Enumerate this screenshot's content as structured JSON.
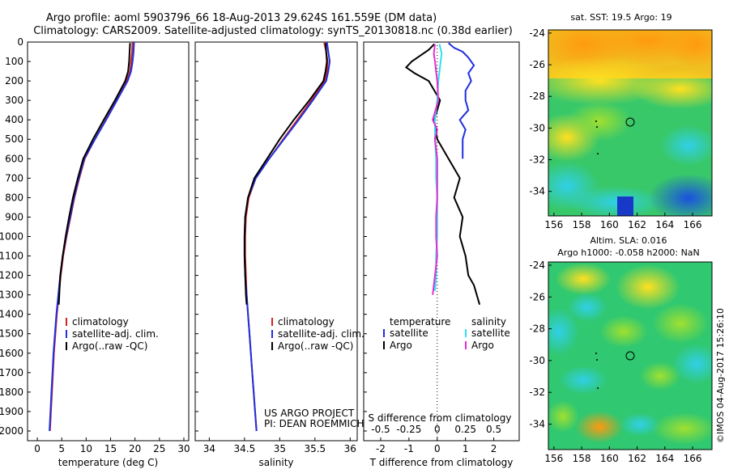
{
  "header": {
    "title_line1": "Argo profile: aoml 5903796_66 18-Aug-2013 29.624S 161.559E (DM data)",
    "title_line2": "Climatology: CARS2009. Satellite-adjusted climatology: synTS_20130818.nc (0.38d earlier)"
  },
  "colors": {
    "climatology": "#d62020",
    "satellite": "#2030e0",
    "argo": "#000000",
    "sal_sat": "#30e0f0",
    "sal_argo": "#e030d0"
  },
  "chart_data": [
    {
      "type": "line",
      "id": "temperature",
      "xlabel": "temperature (deg C)",
      "xlim": [
        -2,
        31
      ],
      "xticks": [
        "0",
        "5",
        "10",
        "15",
        "20",
        "25",
        "30"
      ],
      "ylim": [
        0,
        2050
      ],
      "yticks": [
        "0",
        "100",
        "200",
        "300",
        "400",
        "500",
        "600",
        "700",
        "800",
        "900",
        "1000",
        "1100",
        "1200",
        "1300",
        "1400",
        "1500",
        "1600",
        "1700",
        "1800",
        "1900",
        "2000"
      ],
      "legend": [
        "climatology",
        "satellite-adj. clim.",
        "Argo(..raw -QC)"
      ],
      "series": [
        {
          "name": "climatology",
          "depth": [
            0,
            50,
            100,
            150,
            200,
            300,
            400,
            500,
            600,
            700,
            800,
            900,
            1000,
            1100,
            1200,
            1300,
            1400,
            1500,
            1600,
            1700,
            1800,
            1900,
            2000
          ],
          "values": [
            19.5,
            19.4,
            19.2,
            19.0,
            18.3,
            16.2,
            14.0,
            11.8,
            9.7,
            8.6,
            7.6,
            6.8,
            6.0,
            5.3,
            4.8,
            4.4,
            4.0,
            3.7,
            3.4,
            3.2,
            3.0,
            2.8,
            2.6
          ]
        },
        {
          "name": "satellite-adj. clim.",
          "depth": [
            0,
            50,
            100,
            150,
            200,
            300,
            400,
            500,
            600,
            700,
            800,
            900,
            1000,
            1100,
            1200,
            1300,
            1400,
            1500,
            1600,
            1700,
            1800,
            1900,
            2000
          ],
          "values": [
            19.8,
            19.7,
            19.5,
            19.2,
            18.5,
            16.3,
            14.1,
            11.8,
            9.6,
            8.5,
            7.5,
            6.7,
            5.9,
            5.2,
            4.7,
            4.3,
            3.9,
            3.6,
            3.3,
            3.1,
            2.9,
            2.7,
            2.5
          ]
        },
        {
          "name": "Argo(..raw -QC)",
          "depth": [
            5,
            50,
            100,
            150,
            200,
            300,
            400,
            500,
            600,
            700,
            800,
            900,
            1000,
            1100,
            1200,
            1250,
            1300,
            1350
          ],
          "values": [
            19.0,
            18.9,
            18.8,
            18.6,
            18.0,
            15.9,
            13.6,
            11.4,
            9.4,
            8.3,
            7.3,
            6.5,
            5.8,
            5.2,
            4.7,
            4.6,
            4.5,
            4.4
          ]
        }
      ]
    },
    {
      "type": "line",
      "id": "salinity",
      "xlabel": "salinity",
      "xlim": [
        33.8,
        36.1
      ],
      "xticks": [
        "34",
        "34.5",
        "35",
        "35.5",
        "36"
      ],
      "ylim": [
        0,
        2050
      ],
      "legend": [
        "climatology",
        "satellite-adj. clim.",
        "Argo(..raw -QC)"
      ],
      "series": [
        {
          "name": "climatology",
          "depth": [
            0,
            50,
            100,
            150,
            200,
            300,
            400,
            500,
            600,
            700,
            800,
            900,
            1000,
            1100,
            1200,
            1300,
            1400,
            1500,
            1600,
            1700,
            1800,
            1900,
            2000
          ],
          "values": [
            35.63,
            35.66,
            35.68,
            35.67,
            35.64,
            35.45,
            35.25,
            35.05,
            34.85,
            34.66,
            34.56,
            34.52,
            34.51,
            34.51,
            34.52,
            34.53,
            34.55,
            34.57,
            34.59,
            34.61,
            34.63,
            34.65,
            34.67
          ]
        },
        {
          "name": "satellite-adj. clim.",
          "depth": [
            0,
            50,
            100,
            150,
            200,
            300,
            400,
            500,
            600,
            700,
            800,
            900,
            1000,
            1100,
            1200,
            1300,
            1400,
            1500,
            1600,
            1700,
            1800,
            1900,
            2000
          ],
          "values": [
            35.67,
            35.69,
            35.71,
            35.69,
            35.66,
            35.47,
            35.27,
            35.06,
            34.85,
            34.66,
            34.55,
            34.51,
            34.5,
            34.5,
            34.51,
            34.53,
            34.55,
            34.57,
            34.59,
            34.61,
            34.63,
            34.65,
            34.67
          ]
        },
        {
          "name": "Argo(..raw -QC)",
          "depth": [
            5,
            50,
            100,
            150,
            200,
            300,
            400,
            500,
            600,
            700,
            800,
            900,
            1000,
            1100,
            1200,
            1300,
            1350
          ],
          "values": [
            35.65,
            35.66,
            35.67,
            35.65,
            35.62,
            35.42,
            35.2,
            35.0,
            34.82,
            34.64,
            34.55,
            34.51,
            34.5,
            34.5,
            34.51,
            34.52,
            34.53
          ]
        }
      ],
      "annotations": [
        "US ARGO PROJECT",
        "PI: DEAN ROEMMICH"
      ]
    },
    {
      "type": "line",
      "id": "difference",
      "xlabel": "T difference from climatology",
      "xlabel_top": "S difference from climatology",
      "xlim": [
        -2.6,
        2.9
      ],
      "xticks": [
        "-2",
        "-1",
        "0",
        "1",
        "2"
      ],
      "xticks_top": [
        "-0.5",
        "-0.25",
        "0",
        "0.25",
        "0.5"
      ],
      "legend_t": {
        "heading": "temperature",
        "items": [
          "satellite",
          "Argo"
        ]
      },
      "legend_s": {
        "heading": "salinity",
        "items": [
          "satellite",
          "Argo"
        ]
      },
      "series": [
        {
          "name": "temperature satellite",
          "depth": [
            5,
            30,
            50,
            80,
            120,
            160,
            200,
            250,
            300,
            350,
            400,
            450,
            500,
            550,
            600
          ],
          "values": [
            0.4,
            0.6,
            0.9,
            1.1,
            1.3,
            1.1,
            1.2,
            1.0,
            1.0,
            1.1,
            0.8,
            1.0,
            0.9,
            0.9,
            0.9
          ]
        },
        {
          "name": "temperature Argo",
          "depth": [
            10,
            40,
            70,
            100,
            130,
            160,
            200,
            300,
            400,
            500,
            600,
            700,
            800,
            900,
            1000,
            1100,
            1200,
            1250,
            1300,
            1350
          ],
          "values": [
            -0.1,
            -0.3,
            -0.6,
            -0.9,
            -1.1,
            -0.8,
            -0.3,
            0.1,
            -0.1,
            0.0,
            0.4,
            0.8,
            0.6,
            0.9,
            0.8,
            1.0,
            1.1,
            1.3,
            1.4,
            1.5
          ]
        },
        {
          "name": "salinity satellite",
          "depth": [
            10,
            60,
            100,
            150,
            200,
            300,
            400,
            500,
            600,
            700,
            800,
            900,
            1000,
            1100,
            1200,
            1280
          ],
          "values": [
            0.02,
            0.04,
            0.03,
            0.02,
            0.01,
            0.0,
            -0.02,
            -0.02,
            -0.01,
            -0.01,
            0.0,
            0.0,
            0.0,
            -0.01,
            -0.01,
            -0.02
          ]
        },
        {
          "name": "salinity Argo",
          "depth": [
            10,
            60,
            100,
            150,
            200,
            300,
            400,
            450,
            500,
            600,
            700,
            800,
            900,
            1000,
            1100,
            1200,
            1250,
            1300
          ],
          "values": [
            -0.02,
            -0.03,
            -0.02,
            -0.01,
            0.0,
            0.01,
            -0.04,
            0.0,
            -0.02,
            0.0,
            0.0,
            0.0,
            -0.01,
            -0.01,
            0.0,
            -0.02,
            -0.03,
            -0.04
          ]
        }
      ]
    }
  ],
  "maps": [
    {
      "id": "sst",
      "title": "sat. SST: 19.5 Argo: 19",
      "yticks": [
        "-24",
        "-26",
        "-28",
        "-30",
        "-32",
        "-34"
      ],
      "xticks": [
        "156",
        "158",
        "160",
        "162",
        "164",
        "166"
      ]
    },
    {
      "id": "sla",
      "title_line1": "Altim. SLA: 0.016",
      "title_line2": "Argo h1000: -0.058 h2000: NaN",
      "yticks": [
        "-24",
        "-26",
        "-28",
        "-30",
        "-32",
        "-34"
      ],
      "xticks": [
        "156",
        "158",
        "160",
        "162",
        "164",
        "166"
      ]
    }
  ],
  "footer": {
    "credit": "©IMOS 04-Aug-2017 15:26:10"
  }
}
